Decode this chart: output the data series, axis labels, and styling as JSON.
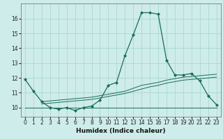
{
  "title": "",
  "xlabel": "Humidex (Indice chaleur)",
  "bg_color": "#ceecea",
  "line_color": "#1a6b5a",
  "grid_color": "#a8d8d4",
  "xlim": [
    -0.5,
    23.5
  ],
  "ylim": [
    9.4,
    17.0
  ],
  "yticks": [
    10,
    11,
    12,
    13,
    14,
    15,
    16
  ],
  "xticks": [
    0,
    1,
    2,
    3,
    4,
    5,
    6,
    7,
    8,
    9,
    10,
    11,
    12,
    13,
    14,
    15,
    16,
    17,
    18,
    19,
    20,
    21,
    22,
    23
  ],
  "y_main": [
    11.9,
    11.1,
    10.4,
    10.0,
    9.9,
    10.0,
    9.8,
    10.0,
    10.1,
    10.5,
    11.5,
    11.7,
    13.5,
    14.9,
    16.4,
    16.4,
    16.3,
    13.2,
    12.2,
    12.2,
    12.3,
    11.8,
    10.8,
    10.2
  ],
  "y_flat": [
    10.0,
    10.0,
    10.0,
    10.0,
    10.0,
    10.0,
    10.0,
    10.0,
    10.0,
    10.0,
    10.0,
    10.0,
    10.0,
    10.0,
    10.0,
    10.0,
    10.0,
    10.0,
    10.0,
    10.0,
    10.0,
    10.0,
    10.0,
    10.0
  ],
  "y_trend1": [
    null,
    null,
    10.4,
    10.45,
    10.5,
    10.55,
    10.6,
    10.65,
    10.7,
    10.8,
    10.9,
    11.0,
    11.1,
    11.3,
    11.5,
    11.6,
    11.7,
    11.85,
    11.95,
    12.05,
    12.1,
    12.15,
    12.2,
    12.25
  ],
  "y_trend2": [
    null,
    null,
    10.25,
    10.3,
    10.35,
    10.4,
    10.45,
    10.5,
    10.55,
    10.65,
    10.75,
    10.85,
    10.95,
    11.1,
    11.25,
    11.4,
    11.5,
    11.65,
    11.75,
    11.85,
    11.9,
    11.95,
    12.0,
    12.05
  ]
}
